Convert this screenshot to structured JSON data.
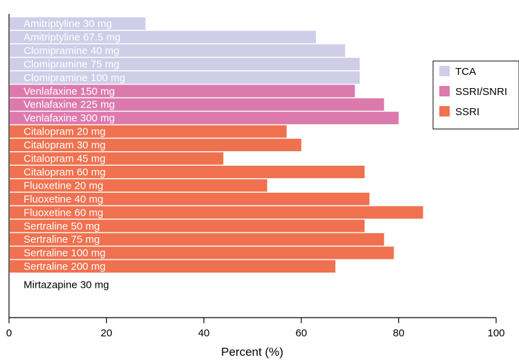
{
  "chart_data": {
    "type": "bar",
    "orientation": "horizontal",
    "categories": [
      "Amitriptyline 30 mg",
      "Amitriptyline 67.5 mg",
      "Clomipramine 40 mg",
      "Clomipramine 75 mg",
      "Clomipramine 100 mg",
      "Venlafaxine 150 mg",
      "Venlafaxine 225 mg",
      "Venlafaxine 300 mg",
      "Citalopram 20 mg",
      "Citalopram 30 mg",
      "Citalopram 45 mg",
      "Citalopram 60 mg",
      "Fluoxetine 20 mg",
      "Fluoxetine 40 mg",
      "Fluoxetine 60 mg",
      "Sertraline 50 mg",
      "Sertraline 75 mg",
      "Sertraline 100 mg",
      "Sertraline 200 mg",
      "Mirtazapine 30 mg"
    ],
    "values": [
      28,
      63,
      69,
      72,
      72,
      71,
      77,
      80,
      57,
      60,
      44,
      73,
      53,
      74,
      85,
      73,
      77,
      79,
      67,
      0
    ],
    "groups": [
      "TCA",
      "TCA",
      "TCA",
      "TCA",
      "TCA",
      "SSRI/SNRI",
      "SSRI/SNRI",
      "SSRI/SNRI",
      "SSRI",
      "SSRI",
      "SSRI",
      "SSRI",
      "SSRI",
      "SSRI",
      "SSRI",
      "SSRI",
      "SSRI",
      "SSRI",
      "SSRI",
      null
    ],
    "legend": [
      {
        "name": "TCA",
        "color": "#cfcde8"
      },
      {
        "name": "SSRI/SNRI",
        "color": "#dd7aad"
      },
      {
        "name": "SSRI",
        "color": "#f0714f"
      }
    ],
    "legend_position": "right",
    "xlabel": "Percent (%)",
    "ylabel": "",
    "title": "",
    "xlim": [
      0,
      100
    ],
    "xticks": [
      "0",
      "20",
      "40",
      "60",
      "80",
      "100"
    ],
    "grid": false
  }
}
